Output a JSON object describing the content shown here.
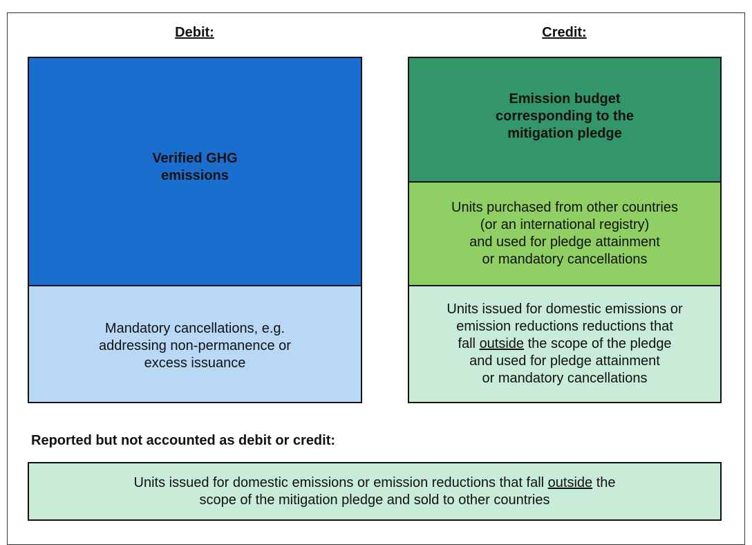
{
  "debit": {
    "heading": "Debit:",
    "boxes": [
      {
        "lines": [
          "Verified GHG",
          "emissions"
        ]
      },
      {
        "lines": [
          "Mandatory cancellations, e.g.",
          "addressing non-permanence or",
          "excess issuance"
        ]
      }
    ]
  },
  "credit": {
    "heading": "Credit:",
    "boxes": [
      {
        "lines": [
          "Emission budget",
          "corresponding to the",
          "mitigation pledge"
        ]
      },
      {
        "lines": [
          "Units purchased from other countries",
          "(or an international registry)",
          "and used for pledge attainment",
          "or mandatory cancellations"
        ]
      },
      {
        "lines": [
          "Units issued for domestic emissions or",
          "emission reductions reductions that",
          {
            "text": "fall ",
            "underlined": "outside",
            "rest": " the scope of the pledge"
          },
          "and used for pledge attainment",
          "or mandatory cancellations"
        ]
      }
    ]
  },
  "reported": {
    "heading": "Reported but not accounted as debit or credit:",
    "box": {
      "lines": [
        {
          "text": "Units issued for domestic emissions or emission reductions that fall ",
          "underlined": "outside",
          "rest": " the"
        },
        "scope of the mitigation pledge and sold to other countries"
      ]
    }
  }
}
